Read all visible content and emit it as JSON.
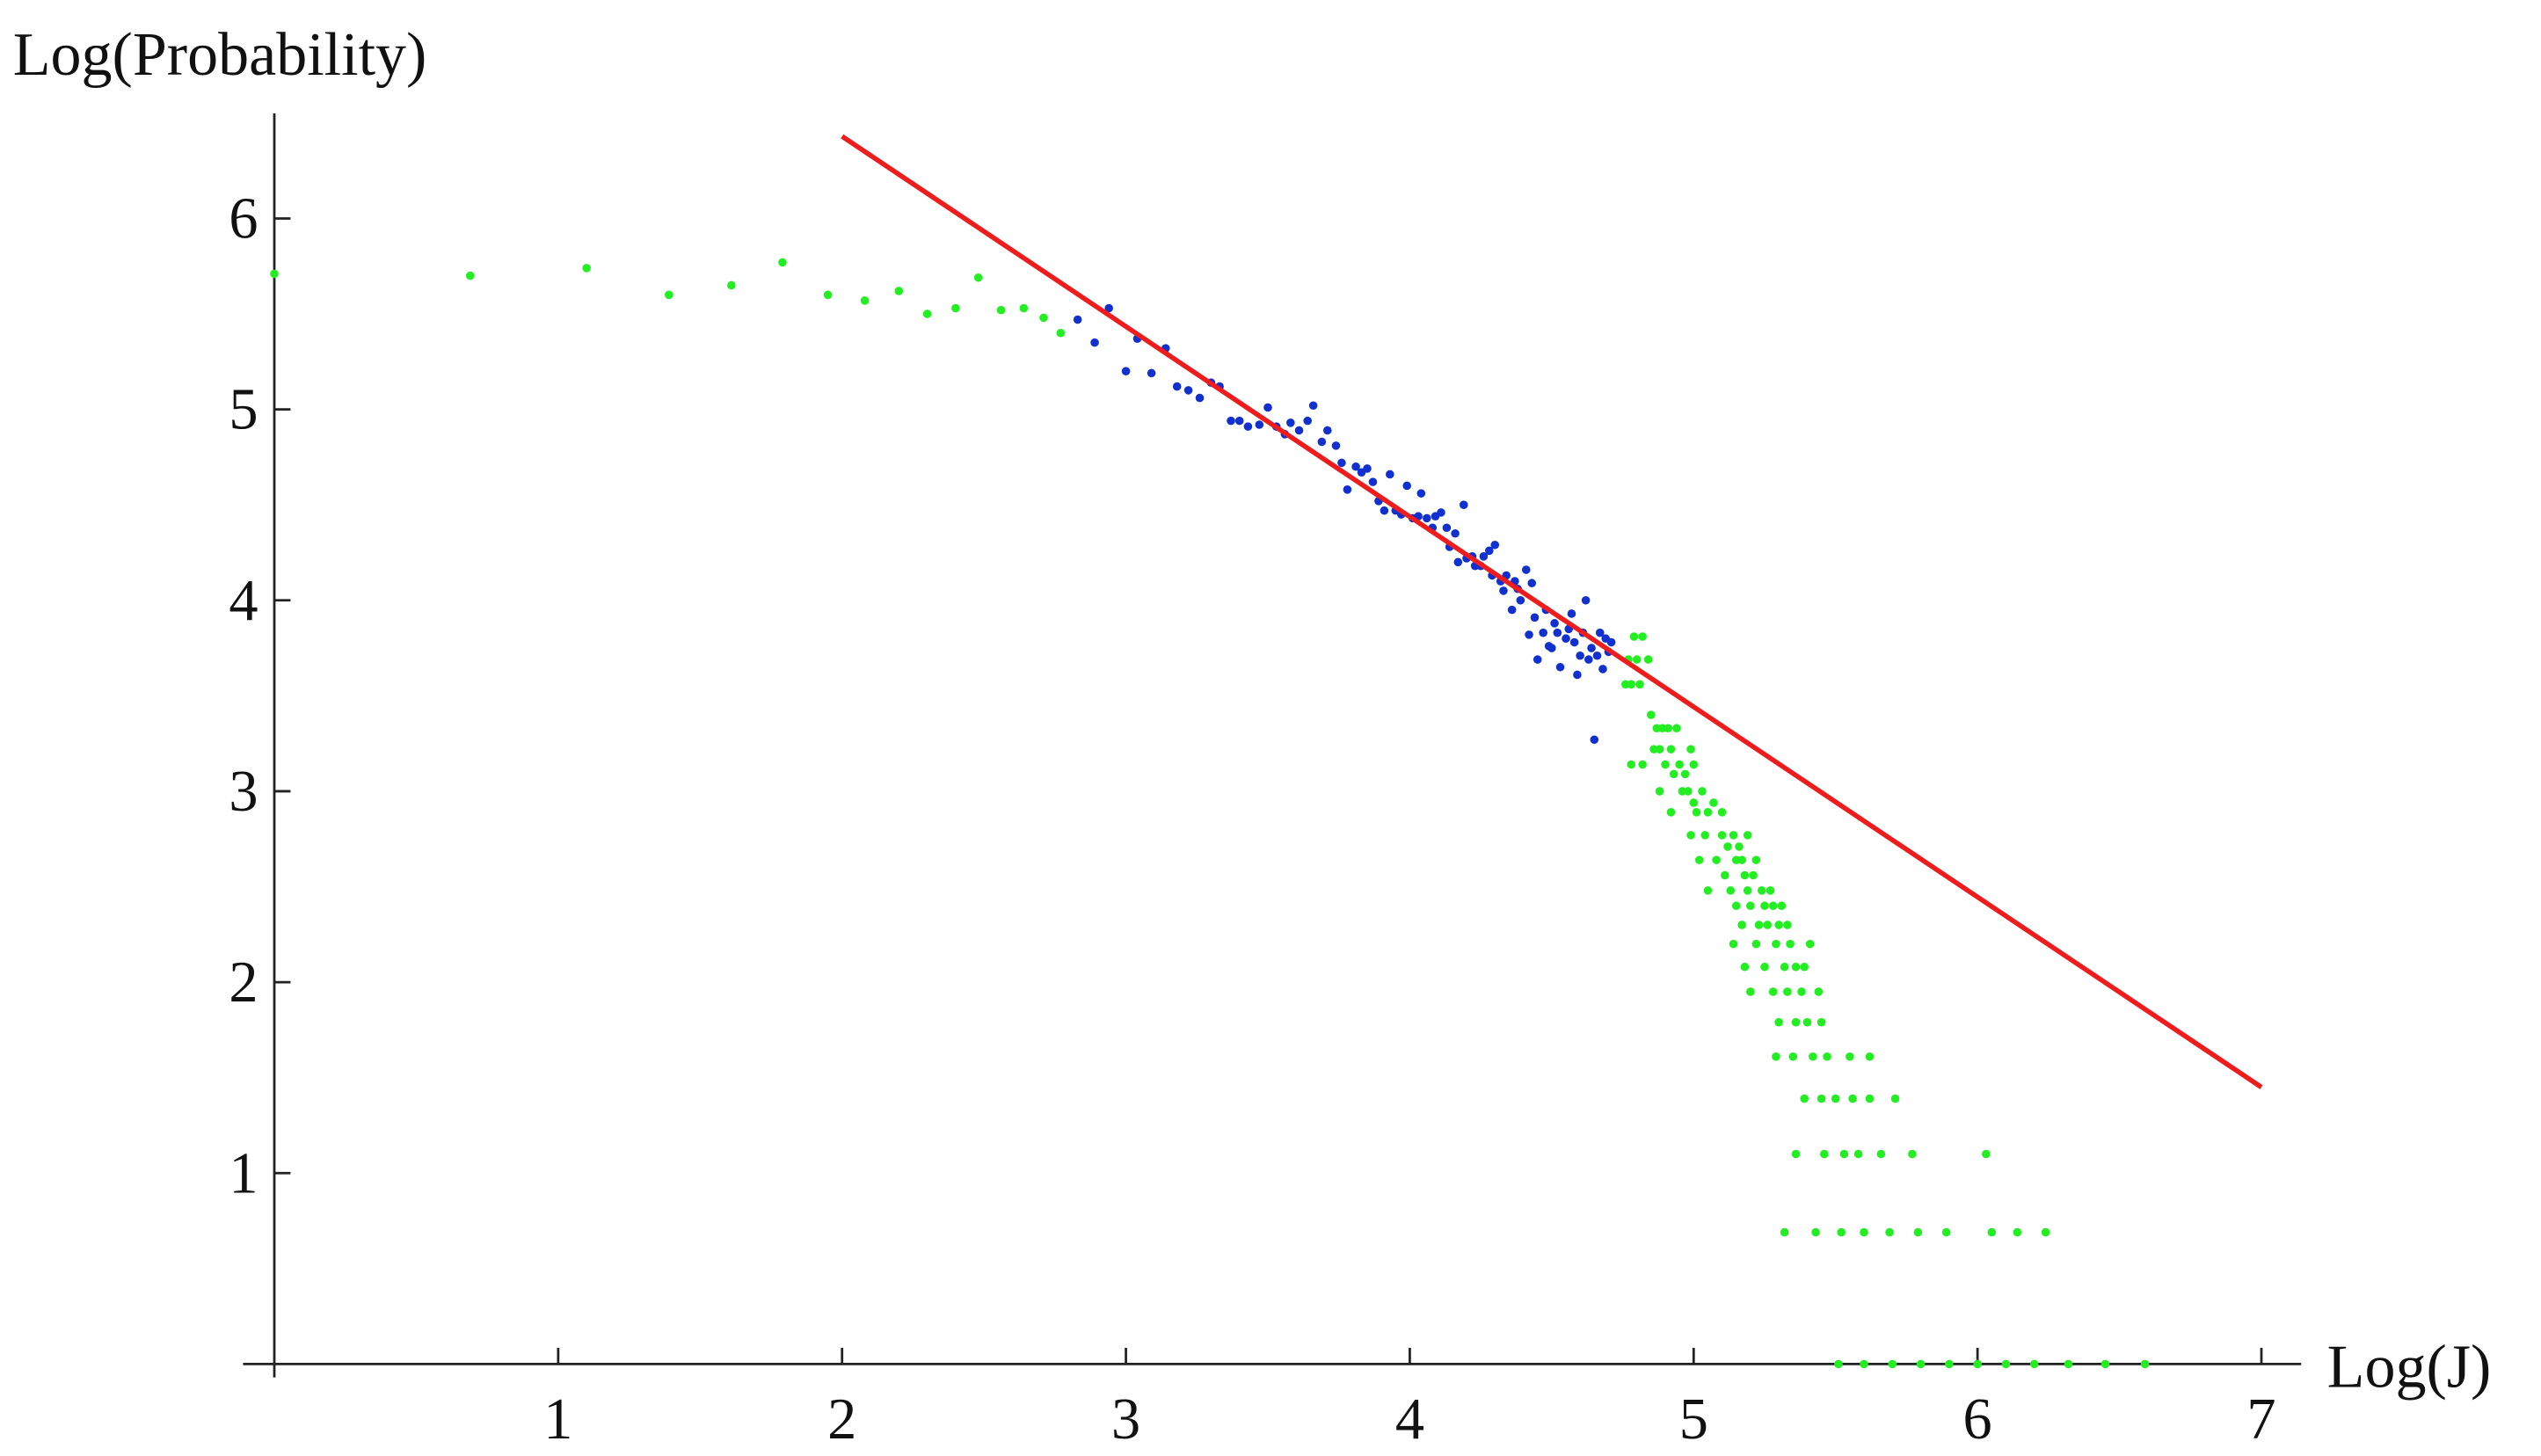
{
  "chart_data": {
    "type": "scatter",
    "x_label": "Log(J)",
    "y_label": "Log(Probability)",
    "xlim": [
      -0.11,
      7.14
    ],
    "ylim": [
      -0.07,
      6.55
    ],
    "xticks": [
      1,
      2,
      3,
      4,
      5,
      6,
      7
    ],
    "yticks": [
      1,
      2,
      3,
      4,
      5,
      6
    ],
    "series": [
      {
        "color": "#22ee22",
        "x": [
          0,
          0.69,
          1.1,
          1.39,
          1.61,
          1.79,
          1.95,
          2.08,
          2.2,
          2.3,
          2.4,
          2.48,
          2.56,
          2.64,
          2.71,
          2.77,
          4.79,
          4.82,
          4.77,
          4.8,
          4.84,
          4.76,
          4.78,
          4.81,
          4.85,
          4.87,
          4.89,
          4.91,
          4.94,
          4.86,
          4.88,
          4.92,
          4.99,
          4.78,
          4.82,
          4.9,
          4.95,
          5.0,
          4.93,
          4.97,
          4.88,
          4.96,
          4.98,
          5.03,
          5.0,
          5.07,
          4.92,
          5.01,
          5.05,
          5.1,
          4.99,
          5.04,
          5.1,
          5.14,
          5.19,
          5.12,
          5.16,
          5.02,
          5.08,
          5.15,
          5.17,
          5.22,
          5.11,
          5.18,
          5.21,
          5.05,
          5.13,
          5.19,
          5.24,
          5.27,
          5.15,
          5.2,
          5.25,
          5.28,
          5.31,
          5.17,
          5.23,
          5.26,
          5.3,
          5.33,
          5.14,
          5.22,
          5.29,
          5.34,
          5.41,
          5.18,
          5.25,
          5.32,
          5.36,
          5.39,
          5.2,
          5.28,
          5.33,
          5.38,
          5.44,
          5.3,
          5.36,
          5.4,
          5.45,
          5.29,
          5.35,
          5.42,
          5.47,
          5.55,
          5.62,
          5.39,
          5.45,
          5.5,
          5.56,
          5.62,
          5.71,
          5.36,
          5.46,
          5.53,
          5.58,
          5.66,
          5.77,
          6.03,
          5.32,
          5.43,
          5.52,
          5.6,
          5.69,
          5.79,
          5.89,
          6.05,
          6.14,
          6.24,
          5.51,
          5.6,
          5.7,
          5.8,
          5.9,
          6.0,
          6.1,
          6.2,
          6.32,
          6.45,
          6.59
        ],
        "values": [
          5.71,
          5.7,
          5.74,
          5.6,
          5.65,
          5.77,
          5.6,
          5.57,
          5.62,
          5.5,
          5.53,
          5.69,
          5.52,
          5.53,
          5.48,
          5.4,
          3.81,
          3.81,
          3.69,
          3.69,
          3.69,
          3.56,
          3.56,
          3.56,
          3.4,
          3.33,
          3.33,
          3.33,
          3.33,
          3.22,
          3.22,
          3.22,
          3.22,
          3.14,
          3.14,
          3.14,
          3.14,
          3.14,
          3.09,
          3.09,
          3.0,
          3.0,
          3.0,
          3.0,
          2.94,
          2.94,
          2.89,
          2.89,
          2.89,
          2.89,
          2.77,
          2.77,
          2.77,
          2.77,
          2.77,
          2.71,
          2.71,
          2.64,
          2.64,
          2.64,
          2.64,
          2.64,
          2.56,
          2.56,
          2.56,
          2.48,
          2.48,
          2.48,
          2.48,
          2.48,
          2.4,
          2.4,
          2.4,
          2.4,
          2.4,
          2.3,
          2.3,
          2.3,
          2.3,
          2.3,
          2.2,
          2.2,
          2.2,
          2.2,
          2.2,
          2.08,
          2.08,
          2.08,
          2.08,
          2.08,
          1.95,
          1.95,
          1.95,
          1.95,
          1.95,
          1.79,
          1.79,
          1.79,
          1.79,
          1.61,
          1.61,
          1.61,
          1.61,
          1.61,
          1.61,
          1.39,
          1.39,
          1.39,
          1.39,
          1.39,
          1.39,
          1.1,
          1.1,
          1.1,
          1.1,
          1.1,
          1.1,
          1.1,
          0.69,
          0.69,
          0.69,
          0.69,
          0.69,
          0.69,
          0.69,
          0.69,
          0.69,
          0.69,
          0,
          0,
          0,
          0,
          0,
          0,
          0,
          0,
          0,
          0,
          0
        ]
      },
      {
        "color": "#1030d0",
        "x": [
          2.83,
          2.94,
          2.89,
          3.0,
          3.04,
          3.09,
          3.14,
          3.18,
          3.22,
          3.26,
          3.3,
          3.33,
          3.37,
          3.4,
          3.43,
          3.47,
          3.5,
          3.53,
          3.56,
          3.58,
          3.61,
          3.64,
          3.66,
          3.69,
          3.71,
          3.74,
          3.76,
          3.78,
          3.81,
          3.83,
          3.85,
          3.87,
          3.89,
          3.91,
          3.93,
          3.95,
          3.97,
          3.99,
          4.01,
          4.03,
          4.04,
          4.06,
          4.08,
          4.09,
          4.11,
          4.13,
          4.14,
          4.16,
          4.17,
          4.19,
          4.2,
          4.22,
          4.23,
          4.25,
          4.26,
          4.28,
          4.29,
          4.3,
          4.32,
          4.33,
          4.34,
          4.36,
          4.37,
          4.38,
          4.39,
          4.41,
          4.42,
          4.43,
          4.44,
          4.45,
          4.47,
          4.48,
          4.49,
          4.5,
          4.51,
          4.52,
          4.53,
          4.55,
          4.56,
          4.57,
          4.58,
          4.59,
          4.6,
          4.61,
          4.62,
          4.63,
          4.64,
          4.65,
          4.66,
          4.67,
          4.68,
          4.69,
          4.7,
          4.71
        ],
        "values": [
          5.47,
          5.53,
          5.35,
          5.2,
          5.37,
          5.19,
          5.32,
          5.12,
          5.1,
          5.06,
          5.14,
          5.12,
          4.94,
          4.94,
          4.91,
          4.92,
          5.01,
          4.91,
          4.87,
          4.93,
          4.89,
          4.94,
          5.02,
          4.83,
          4.89,
          4.81,
          4.72,
          4.58,
          4.7,
          4.67,
          4.69,
          4.62,
          4.52,
          4.47,
          4.66,
          4.47,
          4.45,
          4.6,
          4.43,
          4.44,
          4.56,
          4.43,
          4.38,
          4.44,
          4.46,
          4.38,
          4.28,
          4.35,
          4.2,
          4.5,
          4.22,
          4.23,
          4.18,
          4.18,
          4.23,
          4.26,
          4.13,
          4.29,
          4.1,
          4.05,
          4.13,
          3.95,
          4.1,
          4.06,
          4.0,
          4.16,
          3.82,
          4.09,
          3.91,
          3.69,
          3.83,
          3.95,
          3.76,
          3.75,
          3.88,
          3.83,
          3.65,
          3.8,
          3.85,
          3.93,
          3.78,
          3.61,
          3.71,
          3.83,
          4.0,
          3.69,
          3.75,
          3.27,
          3.71,
          3.83,
          3.64,
          3.8,
          3.73,
          3.78
        ]
      },
      {
        "type": "line",
        "color": "#ee1c1c",
        "x": [
          2,
          7
        ],
        "values": [
          6.43,
          1.45
        ]
      }
    ]
  }
}
